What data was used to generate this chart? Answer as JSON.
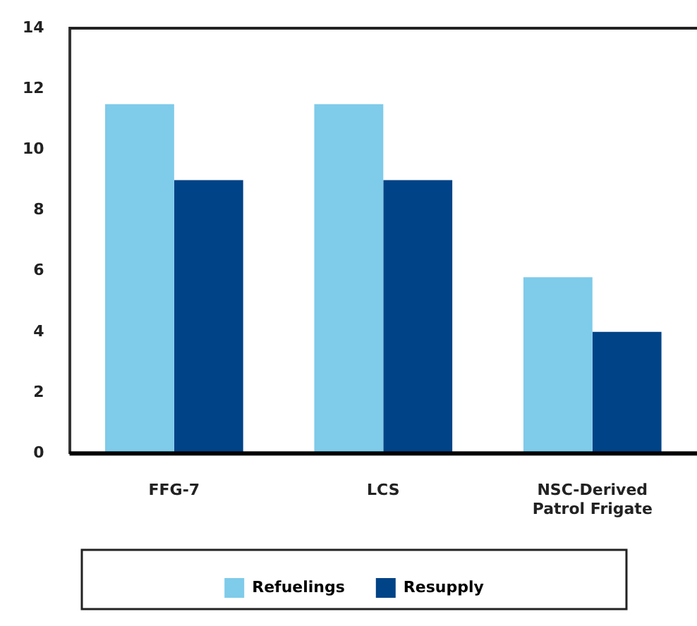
{
  "chart_data": {
    "type": "bar",
    "categories": [
      "FFG-7",
      "LCS",
      "NSC-Derived Patrol Frigate"
    ],
    "series": [
      {
        "name": "Refuelings",
        "color": "#7ecbea",
        "values": [
          11.5,
          11.5,
          5.8
        ]
      },
      {
        "name": "Resupply",
        "color": "#004387",
        "values": [
          9,
          9,
          4
        ]
      }
    ],
    "ylim": [
      0,
      14
    ],
    "yticks": [
      0,
      2,
      4,
      6,
      8,
      10,
      12,
      14
    ],
    "grid": false,
    "legend": "bottom"
  }
}
